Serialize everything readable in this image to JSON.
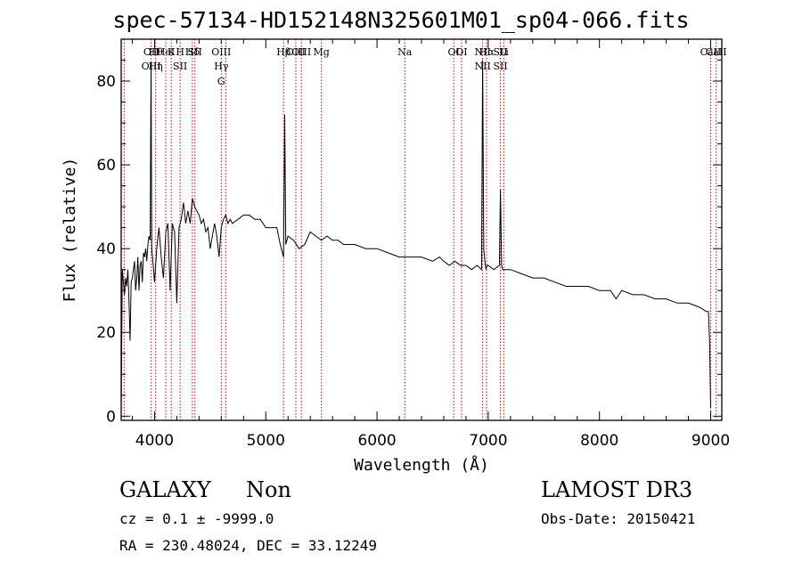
{
  "title": "spec-57134-HD152148N325601M01_sp04-066.fits",
  "info": {
    "class": "GALAXY",
    "subclass": "Non",
    "survey": "LAMOST DR3",
    "cz": "cz = 0.1 ± -9999.0",
    "obs_date": "Obs-Date: 20150421",
    "coords": "RA = 230.48024, DEC =  33.12249"
  },
  "colors": {
    "spectrum": "#000000",
    "lines": "#c00000"
  },
  "chart_data": {
    "type": "line",
    "xlabel": "Wavelength (Å)",
    "ylabel": "Flux (relative)",
    "xlim": [
      3700,
      9100
    ],
    "ylim": [
      -1,
      90
    ],
    "xticks": [
      4000,
      5000,
      6000,
      7000,
      8000,
      9000
    ],
    "yticks": [
      0,
      20,
      40,
      60,
      80
    ],
    "series": [
      {
        "x": [
          3700,
          3710,
          3720,
          3730,
          3740,
          3750,
          3760,
          3770,
          3780,
          3790,
          3800,
          3810,
          3820,
          3830,
          3840,
          3850,
          3860,
          3870,
          3880,
          3890,
          3900,
          3910,
          3920,
          3930,
          3940,
          3950,
          3960,
          3968,
          3975,
          3985,
          4000,
          4020,
          4040,
          4060,
          4080,
          4101,
          4120,
          4140,
          4160,
          4180,
          4200,
          4220,
          4240,
          4260,
          4280,
          4300,
          4320,
          4340,
          4360,
          4380,
          4400,
          4420,
          4440,
          4460,
          4480,
          4500,
          4520,
          4540,
          4560,
          4580,
          4600,
          4620,
          4640,
          4660,
          4680,
          4700,
          4750,
          4800,
          4850,
          4900,
          4950,
          5000,
          5050,
          5100,
          5130,
          5160,
          5170,
          5180,
          5200,
          5250,
          5300,
          5350,
          5400,
          5450,
          5500,
          5550,
          5600,
          5650,
          5700,
          5800,
          5900,
          6000,
          6100,
          6200,
          6300,
          6400,
          6500,
          6563,
          6600,
          6650,
          6700,
          6750,
          6800,
          6850,
          6900,
          6940,
          6950,
          6960,
          6970,
          6980,
          6990,
          7000,
          7050,
          7100,
          7110,
          7120,
          7130,
          7140,
          7200,
          7300,
          7400,
          7500,
          7600,
          7700,
          7800,
          7900,
          8000,
          8100,
          8150,
          8200,
          8300,
          8400,
          8500,
          8600,
          8700,
          8800,
          8900,
          8960,
          8980,
          8990,
          9000
        ],
        "y": [
          1,
          35,
          32,
          29,
          33,
          31,
          35,
          28,
          18,
          32,
          33,
          35,
          37,
          30,
          33,
          38,
          30,
          36,
          37,
          32,
          39,
          38,
          40,
          37,
          41,
          43,
          42,
          84,
          40,
          37,
          32,
          40,
          45,
          38,
          33,
          44,
          46,
          30,
          46,
          44,
          27,
          45,
          47,
          51,
          46,
          49,
          46,
          52,
          50,
          49,
          48,
          46,
          47,
          44,
          45,
          40,
          43,
          46,
          43,
          38,
          45,
          47,
          48,
          46,
          47,
          46,
          47,
          48,
          48,
          47,
          47,
          45,
          45,
          45,
          41,
          38,
          72,
          41,
          43,
          42,
          40,
          41,
          44,
          43,
          42,
          43,
          42,
          42,
          41,
          41,
          40,
          40,
          39,
          38,
          38,
          38,
          37,
          38,
          37,
          36,
          37,
          36,
          36,
          35,
          36,
          35,
          85,
          40,
          37,
          35,
          36,
          36,
          35,
          36,
          54,
          36,
          35,
          35,
          35,
          34,
          33,
          33,
          32,
          31,
          31,
          31,
          30,
          30,
          28,
          30,
          29,
          29,
          28,
          28,
          27,
          27,
          26,
          25,
          25,
          18,
          2
        ],
        "label_text": "",
        "style": "line"
      }
    ],
    "emission_lines": [
      {
        "wave": 3727,
        "labels": []
      },
      {
        "wave": 3970,
        "labels": [
          "OII",
          "OIII"
        ]
      },
      {
        "wave": 4010,
        "labels": [
          "Hθ",
          "Hη"
        ]
      },
      {
        "wave": 4101,
        "labels": [
          "HeI"
        ]
      },
      {
        "wave": 4150,
        "labels": [
          "K"
        ]
      },
      {
        "wave": 4230,
        "labels": [
          "H",
          "SII"
        ]
      },
      {
        "wave": 4340,
        "labels": [
          "Hδ"
        ]
      },
      {
        "wave": 4363,
        "labels": [
          "SII"
        ]
      },
      {
        "wave": 4600,
        "labels": [
          "OIII",
          "Hγ",
          "G"
        ]
      },
      {
        "wave": 4640,
        "labels": []
      },
      {
        "wave": 5160,
        "labels": [
          "Hβ"
        ]
      },
      {
        "wave": 5270,
        "labels": [
          "OIII"
        ]
      },
      {
        "wave": 5320,
        "labels": [
          "OIII"
        ]
      },
      {
        "wave": 5500,
        "labels": [
          "Mg"
        ]
      },
      {
        "wave": 6250,
        "labels": [
          "Na"
        ]
      },
      {
        "wave": 6690,
        "labels": [
          "OI"
        ]
      },
      {
        "wave": 6760,
        "labels": [
          "OI"
        ]
      },
      {
        "wave": 6950,
        "labels": [
          "NII",
          "NII"
        ]
      },
      {
        "wave": 6985,
        "labels": [
          "Hα"
        ]
      },
      {
        "wave": 7110,
        "labels": [
          "SII",
          "SII"
        ]
      },
      {
        "wave": 7140,
        "labels": [
          "Li"
        ]
      },
      {
        "wave": 9000,
        "labels": [
          "CaII"
        ]
      },
      {
        "wave": 9050,
        "labels": [
          "CaII"
        ]
      }
    ]
  }
}
